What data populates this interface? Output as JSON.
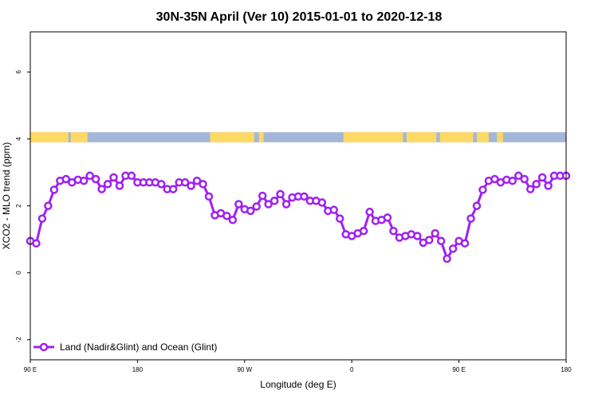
{
  "chart_data": {
    "type": "line",
    "title": "30N-35N April (Ver 10)   2015-01-01 to 2020-12-18",
    "xlabel": "Longitude (deg E)",
    "ylabel": "XCO2 - MLO trend (ppm)",
    "x_ticks": [
      {
        "value": 90,
        "label": "90 E"
      },
      {
        "value": 180,
        "label": "180"
      },
      {
        "value": 270,
        "label": "90 W"
      },
      {
        "value": 360,
        "label": "0"
      },
      {
        "value": 450,
        "label": "90 E"
      },
      {
        "value": 540,
        "label": "180"
      }
    ],
    "y_ticks": [
      {
        "value": -2,
        "label": "-2"
      },
      {
        "value": 0,
        "label": "0"
      },
      {
        "value": 2,
        "label": "2"
      },
      {
        "value": 4,
        "label": "4"
      },
      {
        "value": 6,
        "label": "6"
      }
    ],
    "xlim": [
      90,
      540
    ],
    "ylim": [
      -2.6,
      7.2
    ],
    "series_color": "#a020f0",
    "land_color": "#ffd966",
    "ocean_color": "#a3b7d8",
    "surface_band": {
      "ymin": 3.9,
      "ymax": 4.2,
      "land_segments": [
        [
          90,
          122
        ],
        [
          124,
          138
        ],
        [
          241,
          278
        ],
        [
          282,
          286
        ],
        [
          353,
          403
        ],
        [
          406,
          431
        ],
        [
          434,
          462
        ],
        [
          465,
          475
        ],
        [
          482,
          487
        ]
      ]
    },
    "legend": {
      "label": "Land (Nadir&Glint) and Ocean (Glint)",
      "position": "bottom-left"
    },
    "series": [
      {
        "name": "Land (Nadir&Glint) and Ocean (Glint)",
        "x": [
          90,
          95,
          100,
          105,
          110,
          115,
          120,
          125,
          130,
          135,
          140,
          145,
          150,
          155,
          160,
          165,
          170,
          175,
          180,
          185,
          190,
          195,
          200,
          205,
          210,
          215,
          220,
          225,
          230,
          235,
          240,
          245,
          250,
          255,
          260,
          265,
          270,
          275,
          280,
          285,
          290,
          295,
          300,
          305,
          310,
          315,
          320,
          325,
          330,
          335,
          340,
          345,
          350,
          355,
          360,
          365,
          370,
          375,
          380,
          385,
          390,
          395,
          400,
          405,
          410,
          415,
          420,
          425,
          430,
          435,
          440,
          445,
          450,
          455,
          460,
          465,
          470,
          475,
          480,
          485,
          490,
          495,
          500,
          505,
          510,
          515,
          520,
          525,
          530,
          535,
          540
        ],
        "values": [
          0.95,
          0.88,
          1.62,
          2.0,
          2.48,
          2.75,
          2.8,
          2.7,
          2.78,
          2.75,
          2.9,
          2.8,
          2.5,
          2.65,
          2.85,
          2.6,
          2.9,
          2.9,
          2.7,
          2.7,
          2.7,
          2.7,
          2.65,
          2.5,
          2.5,
          2.7,
          2.7,
          2.6,
          2.75,
          2.65,
          2.28,
          1.72,
          1.78,
          1.7,
          1.58,
          2.05,
          1.9,
          1.85,
          1.98,
          2.3,
          2.05,
          2.15,
          2.35,
          2.05,
          2.25,
          2.28,
          2.28,
          2.15,
          2.15,
          2.1,
          1.85,
          1.88,
          1.62,
          1.15,
          1.1,
          1.18,
          1.25,
          1.82,
          1.55,
          1.58,
          1.65,
          1.25,
          1.05,
          1.1,
          1.15,
          1.1,
          0.9,
          0.98,
          1.18,
          0.95,
          0.42,
          0.72,
          0.95,
          0.88,
          1.62,
          2.0,
          2.48,
          2.75,
          2.8,
          2.7,
          2.78,
          2.75,
          2.9,
          2.8,
          2.5,
          2.65,
          2.85,
          2.6,
          2.9,
          2.9,
          2.9
        ]
      }
    ]
  }
}
